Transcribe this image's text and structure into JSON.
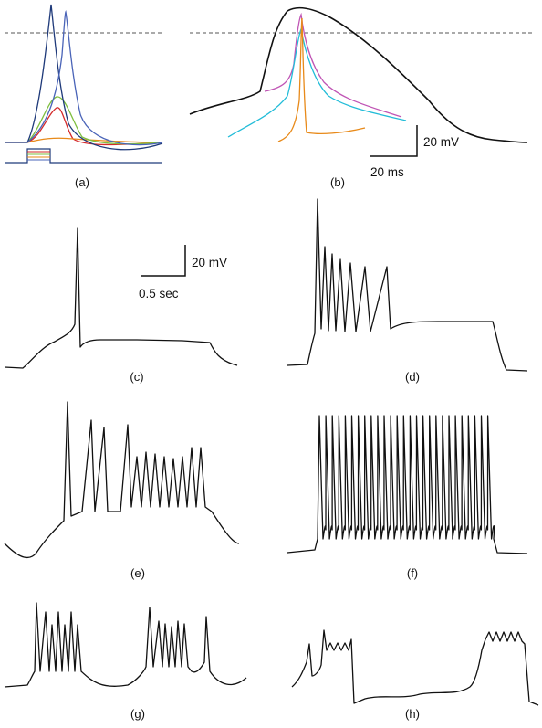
{
  "panels": [
    {
      "id": "a",
      "label": "(a)"
    },
    {
      "id": "b",
      "label": "(b)"
    },
    {
      "id": "c",
      "label": "(c)"
    },
    {
      "id": "d",
      "label": "(d)"
    },
    {
      "id": "e",
      "label": "(e)"
    },
    {
      "id": "f",
      "label": "(f)"
    },
    {
      "id": "g",
      "label": "(g)"
    },
    {
      "id": "h",
      "label": "(h)"
    }
  ],
  "scale_bars": {
    "b": {
      "voltage": "20 mV",
      "time": "20 ms"
    },
    "c": {
      "voltage": "20 mV",
      "time": "0.5 sec"
    }
  },
  "colors": {
    "trace": "#111111",
    "navy": "#1f3a7a",
    "blue": "#4a64b8",
    "green": "#7fbf3f",
    "red": "#d42a2a",
    "orange": "#e88a1a",
    "cyan": "#22bcd8",
    "magenta": "#c055b5",
    "teal": "#2a7aa0"
  }
}
